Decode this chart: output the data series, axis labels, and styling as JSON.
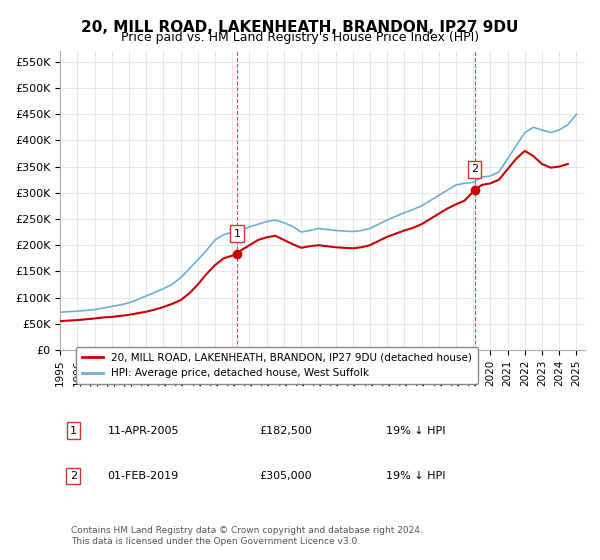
{
  "title": "20, MILL ROAD, LAKENHEATH, BRANDON, IP27 9DU",
  "subtitle": "Price paid vs. HM Land Registry's House Price Index (HPI)",
  "ylabel_ticks": [
    "£0",
    "£50K",
    "£100K",
    "£150K",
    "£200K",
    "£250K",
    "£300K",
    "£350K",
    "£400K",
    "£450K",
    "£500K",
    "£550K"
  ],
  "ytick_values": [
    0,
    50000,
    100000,
    150000,
    200000,
    250000,
    300000,
    350000,
    400000,
    450000,
    500000,
    550000
  ],
  "ylim": [
    0,
    570000
  ],
  "xlim_start": 1995.0,
  "xlim_end": 2025.5,
  "hpi_color": "#6baed6",
  "price_color": "#cc0000",
  "marker1_date": 2005.27,
  "marker1_price": 182500,
  "marker1_label": "1",
  "marker2_date": 2019.08,
  "marker2_price": 305000,
  "marker2_label": "2",
  "legend_line1": "20, MILL ROAD, LAKENHEATH, BRANDON, IP27 9DU (detached house)",
  "legend_line2": "HPI: Average price, detached house, West Suffolk",
  "table_rows": [
    {
      "num": "1",
      "date": "11-APR-2005",
      "price": "£182,500",
      "pct": "19% ↓ HPI"
    },
    {
      "num": "2",
      "date": "01-FEB-2019",
      "price": "£305,000",
      "pct": "19% ↓ HPI"
    }
  ],
  "footnote": "Contains HM Land Registry data © Crown copyright and database right 2024.\nThis data is licensed under the Open Government Licence v3.0.",
  "background_color": "#ffffff",
  "grid_color": "#dddddd"
}
